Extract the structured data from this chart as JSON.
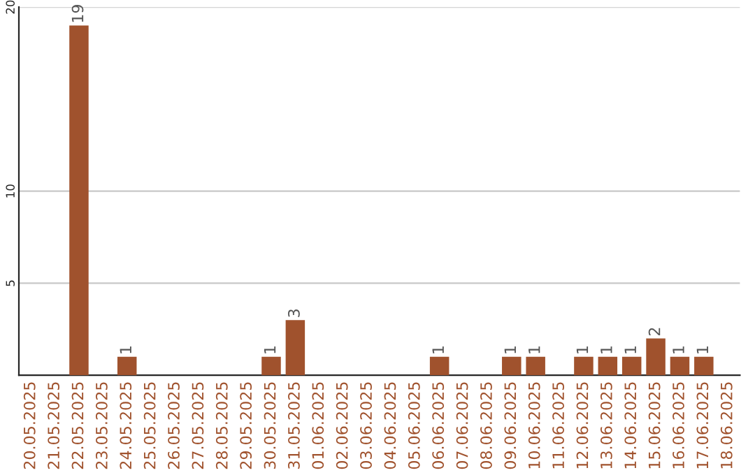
{
  "chart_data": {
    "type": "bar",
    "categories": [
      "20.05.2025",
      "21.05.2025",
      "22.05.2025",
      "23.05.2025",
      "24.05.2025",
      "25.05.2025",
      "26.05.2025",
      "27.05.2025",
      "28.05.2025",
      "29.05.2025",
      "30.05.2025",
      "31.05.2025",
      "01.06.2025",
      "02.06.2025",
      "03.06.2025",
      "04.06.2025",
      "05.06.2025",
      "06.06.2025",
      "07.06.2025",
      "08.06.2025",
      "09.06.2025",
      "10.06.2025",
      "11.06.2025",
      "12.06.2025",
      "13.06.2025",
      "14.06.2025",
      "15.06.2025",
      "16.06.2025",
      "17.06.2025",
      "18.06.2025"
    ],
    "values": [
      0,
      0,
      19,
      0,
      1,
      0,
      0,
      0,
      0,
      0,
      1,
      3,
      0,
      0,
      0,
      0,
      0,
      1,
      0,
      0,
      1,
      1,
      0,
      1,
      1,
      1,
      2,
      1,
      1,
      0
    ],
    "value_labels": [
      null,
      null,
      "19",
      null,
      "1",
      null,
      null,
      null,
      null,
      null,
      "1",
      "3",
      null,
      null,
      null,
      null,
      null,
      "1",
      null,
      null,
      "1",
      "1",
      null,
      "1",
      "1",
      "1",
      "2",
      "1",
      "1",
      null
    ],
    "color": "#a0522d",
    "ylim": [
      0,
      20
    ],
    "yticks": [
      5,
      10,
      20
    ],
    "grid": "y"
  }
}
